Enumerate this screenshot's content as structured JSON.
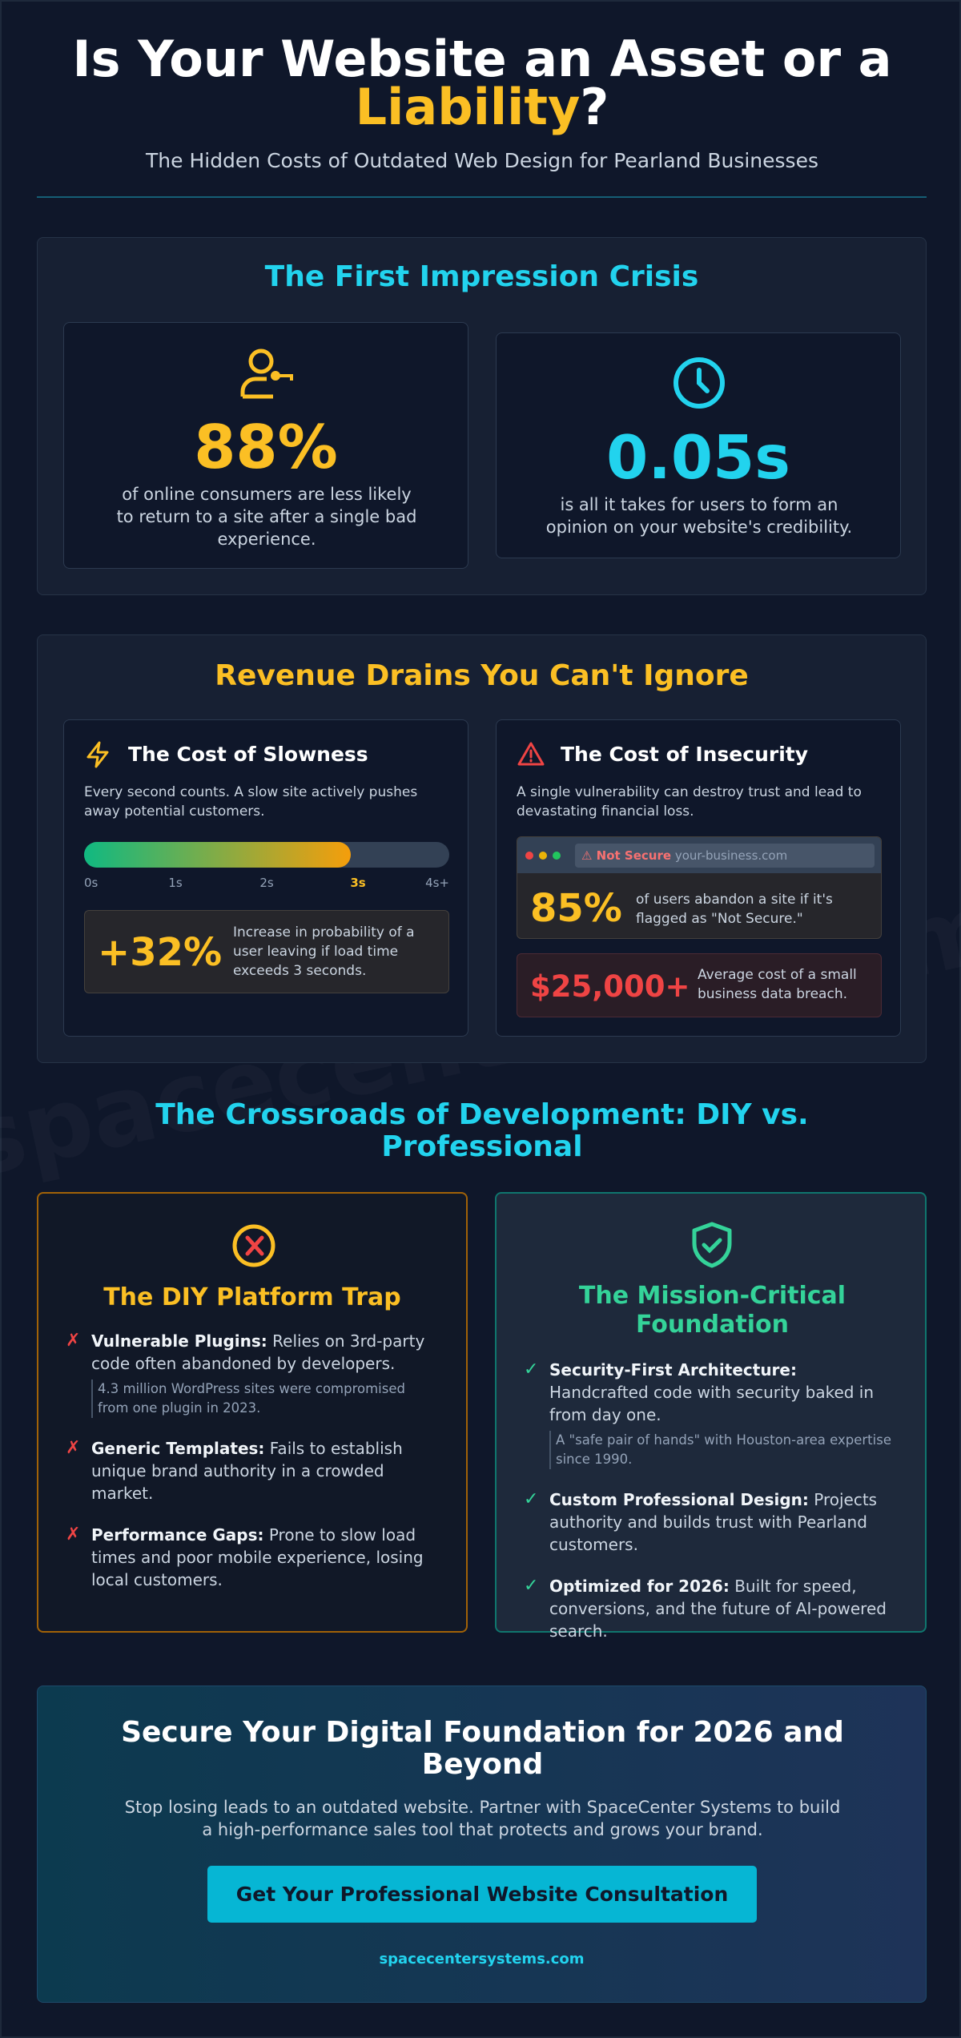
{
  "header": {
    "title_prefix": "Is Your Website an Asset or a",
    "title_highlight": "Liability",
    "title_suffix": "?",
    "subtitle": "The Hidden Costs of Outdated Web Design for Pearland Businesses"
  },
  "watermark": "spacecentersystems.com",
  "impression": {
    "heading": "The First Impression Crisis",
    "cards": [
      {
        "stat": "88%",
        "text": "of online consumers are less likely to return to a site after a single bad experience."
      },
      {
        "stat": "0.05s",
        "text": "is all it takes for users to form an opinion on your website's credibility."
      }
    ]
  },
  "revenue": {
    "heading": "Revenue Drains You Can't Ignore",
    "slowness": {
      "title": "The Cost of Slowness",
      "text": "Every second counts. A slow site actively pushes away potential customers.",
      "scale": [
        "0s",
        "1s",
        "2s",
        "3s",
        "4s+"
      ],
      "stat": "+32%",
      "stat_text": "Increase in probability of a user leaving if load time exceeds 3 seconds."
    },
    "insecurity": {
      "title": "The Cost of Insecurity",
      "text": "A single vulnerability can destroy trust and lead to devastating financial loss.",
      "browser_warning": "Not Secure",
      "browser_url": "your-business.com",
      "stats": [
        {
          "stat": "85%",
          "text": "of users abandon a site if it's flagged as \"Not Secure.\""
        },
        {
          "stat": "$25,000+",
          "text": "Average cost of a small business data breach."
        }
      ]
    }
  },
  "crossroads": {
    "heading": "The Crossroads of Development: DIY vs. Professional",
    "diy": {
      "title": "The DIY Platform Trap",
      "items": [
        {
          "label": "Vulnerable Plugins:",
          "text": "Relies on 3rd-party code often abandoned by developers.",
          "note": "4.3 million WordPress sites were compromised from one plugin in 2023."
        },
        {
          "label": "Generic Templates:",
          "text": "Fails to establish unique brand authority in a crowded market."
        },
        {
          "label": "Performance Gaps:",
          "text": "Prone to slow load times and poor mobile experience, losing local customers."
        }
      ]
    },
    "pro": {
      "title": "The Mission-Critical Foundation",
      "items": [
        {
          "label": "Security-First Architecture:",
          "text": "Handcrafted code with security baked in from day one.",
          "note": "A \"safe pair of hands\" with Houston-area expertise since 1990."
        },
        {
          "label": "Custom Professional Design:",
          "text": "Projects authority and builds trust with Pearland customers."
        },
        {
          "label": "Optimized for 2026:",
          "text": "Built for speed, conversions, and the future of AI-powered search."
        }
      ]
    }
  },
  "cta": {
    "heading": "Secure Your Digital Foundation for 2026 and Beyond",
    "text": "Stop losing leads to an outdated website. Partner with SpaceCenter Systems to build a high-performance sales tool that protects and grows your brand.",
    "button": "Get Your Professional Website Consultation",
    "link": "spacecentersystems.com"
  }
}
